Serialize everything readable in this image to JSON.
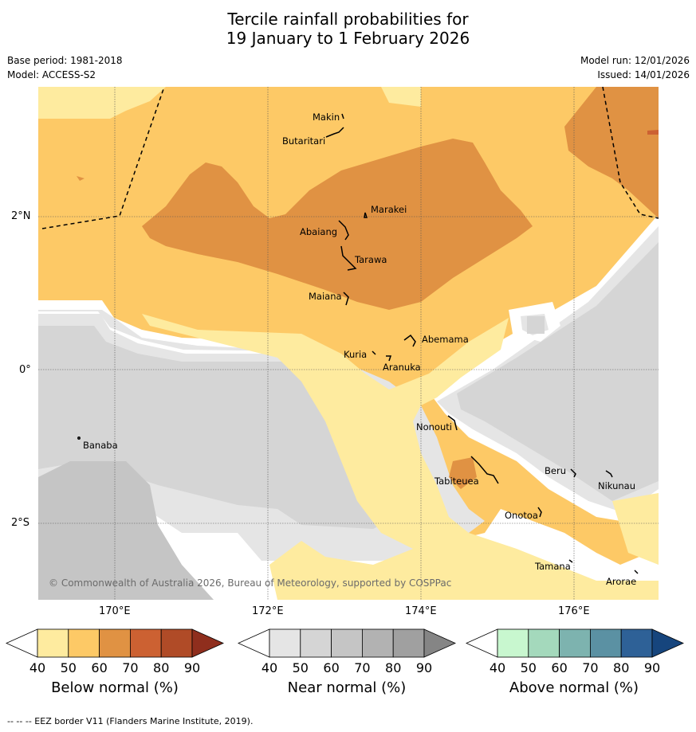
{
  "title_line1": "Tercile rainfall probabilities for",
  "title_line2": "19 January to 1 February 2026",
  "base_period": "Base period: 1981-2018",
  "model": "Model: ACCESS-S2",
  "model_run": "Model run: 12/01/2026",
  "issued": "Issued: 14/01/2026",
  "copyright": "© Commonwealth of Australia 2026, Bureau of Meteorology, supported by COSPPac",
  "lat_labels": [
    "2°N",
    "0°",
    "2°S"
  ],
  "lon_labels": [
    "170°E",
    "172°E",
    "174°E",
    "176°E"
  ],
  "places": [
    "Makin",
    "Butaritari",
    "Marakei",
    "Abaiang",
    "Tarawa",
    "Maiana",
    "Abemama",
    "Kuria",
    "Aranuka",
    "Banaba",
    "Nonouti",
    "Tabiteuea",
    "Beru",
    "Nikunau",
    "Onotoa",
    "Tamana",
    "Arorae"
  ],
  "colorbars": [
    {
      "label": "Below normal (%)",
      "ticks": [
        "40",
        "50",
        "60",
        "70",
        "80",
        "90"
      ],
      "colors": [
        "#ffffff",
        "#feeb9f",
        "#fdc966",
        "#e09243",
        "#cc6132",
        "#b04b27",
        "#8f2e1d"
      ]
    },
    {
      "label": "Near normal (%)",
      "ticks": [
        "40",
        "50",
        "60",
        "70",
        "80",
        "90"
      ],
      "colors": [
        "#ffffff",
        "#e5e5e5",
        "#d5d5d5",
        "#c5c5c5",
        "#b2b2b2",
        "#a0a0a0",
        "#858585"
      ]
    },
    {
      "label": "Above normal (%)",
      "ticks": [
        "40",
        "50",
        "60",
        "70",
        "80",
        "90"
      ],
      "colors": [
        "#ffffff",
        "#c8f7cf",
        "#a4d9bc",
        "#7db3af",
        "#5b91a3",
        "#2e6197",
        "#16457d"
      ]
    }
  ],
  "footer": "--  --  -- EEZ border V11 (Flanders Marine Institute, 2019)."
}
